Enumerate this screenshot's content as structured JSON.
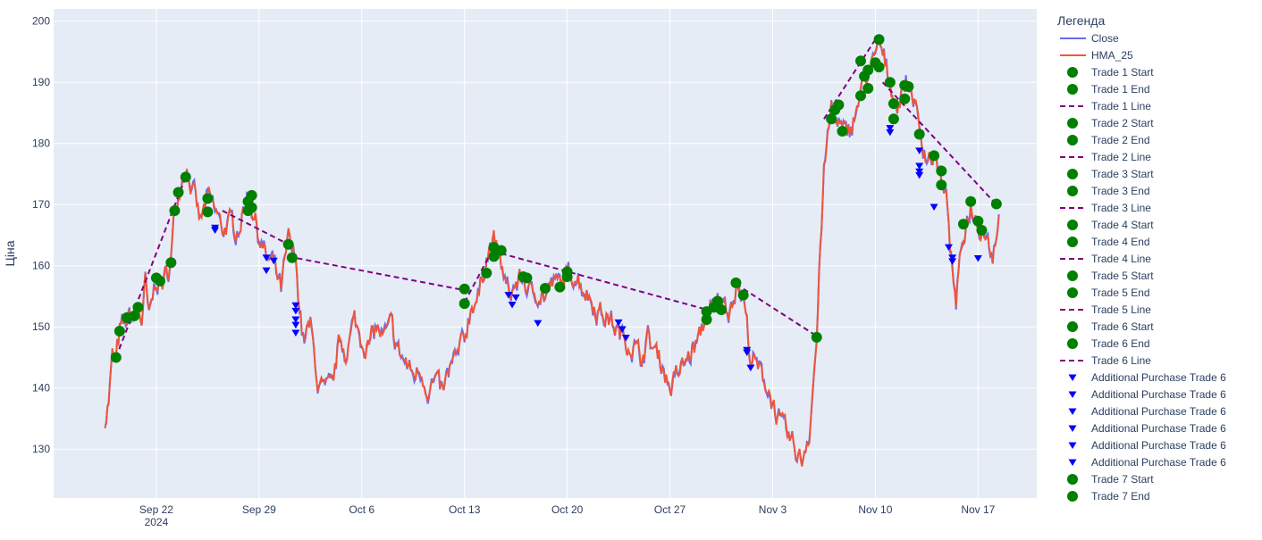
{
  "chart_data": {
    "type": "line",
    "ylabel": "Ціна",
    "ylim": [
      122,
      202
    ],
    "xlim": [
      "2024-09-15",
      "2024-11-21"
    ],
    "yticks": [
      130,
      140,
      150,
      160,
      170,
      180,
      190,
      200
    ],
    "xticks": [
      {
        "date": "2024-09-22",
        "label": "Sep 22",
        "sublabel": "2024"
      },
      {
        "date": "2024-09-29",
        "label": "Sep 29",
        "sublabel": ""
      },
      {
        "date": "2024-10-06",
        "label": "Oct 6",
        "sublabel": ""
      },
      {
        "date": "2024-10-13",
        "label": "Oct 13",
        "sublabel": ""
      },
      {
        "date": "2024-10-20",
        "label": "Oct 20",
        "sublabel": ""
      },
      {
        "date": "2024-10-27",
        "label": "Oct 27",
        "sublabel": ""
      },
      {
        "date": "2024-11-03",
        "label": "Nov 3",
        "sublabel": ""
      },
      {
        "date": "2024-11-10",
        "label": "Nov 10",
        "sublabel": ""
      },
      {
        "date": "2024-11-17",
        "label": "Nov 17",
        "sublabel": ""
      }
    ],
    "grid": true,
    "background": "#e5ecf6",
    "colors": {
      "close": "#636efa",
      "hma": "#ef553b",
      "trade_marker": "#008000",
      "trade_line": "#800080",
      "purchase": "#0000ff"
    },
    "legend": {
      "title": "Легенда",
      "placement": "right",
      "items": [
        {
          "label": "Close",
          "kind": "line",
          "color": "#636efa"
        },
        {
          "label": "HMA_25",
          "kind": "line",
          "color": "#ef553b"
        },
        {
          "label": "Trade 1 Start",
          "kind": "circle"
        },
        {
          "label": "Trade 1 End",
          "kind": "circle"
        },
        {
          "label": "Trade 1 Line",
          "kind": "dash"
        },
        {
          "label": "Trade 2 Start",
          "kind": "circle"
        },
        {
          "label": "Trade 2 End",
          "kind": "circle"
        },
        {
          "label": "Trade 2 Line",
          "kind": "dash"
        },
        {
          "label": "Trade 3 Start",
          "kind": "circle"
        },
        {
          "label": "Trade 3 End",
          "kind": "circle"
        },
        {
          "label": "Trade 3 Line",
          "kind": "dash"
        },
        {
          "label": "Trade 4 Start",
          "kind": "circle"
        },
        {
          "label": "Trade 4 End",
          "kind": "circle"
        },
        {
          "label": "Trade 4 Line",
          "kind": "dash"
        },
        {
          "label": "Trade 5 Start",
          "kind": "circle"
        },
        {
          "label": "Trade 5 End",
          "kind": "circle"
        },
        {
          "label": "Trade 5 Line",
          "kind": "dash"
        },
        {
          "label": "Trade 6 Start",
          "kind": "circle"
        },
        {
          "label": "Trade 6 End",
          "kind": "circle"
        },
        {
          "label": "Trade 6 Line",
          "kind": "dash"
        },
        {
          "label": "Additional Purchase Trade 6",
          "kind": "triangle"
        },
        {
          "label": "Additional Purchase Trade 6",
          "kind": "triangle"
        },
        {
          "label": "Additional Purchase Trade 6",
          "kind": "triangle"
        },
        {
          "label": "Additional Purchase Trade 6",
          "kind": "triangle"
        },
        {
          "label": "Additional Purchase Trade 6",
          "kind": "triangle"
        },
        {
          "label": "Additional Purchase Trade 6",
          "kind": "triangle"
        },
        {
          "label": "Trade 7 Start",
          "kind": "circle"
        },
        {
          "label": "Trade 7 End",
          "kind": "circle"
        }
      ]
    },
    "price_anchors": [
      [
        "2024-09-18 12:00",
        135
      ],
      [
        "2024-09-18 18:00",
        138
      ],
      [
        "2024-09-19 00:00",
        145
      ],
      [
        "2024-09-19 06:00",
        144
      ],
      [
        "2024-09-19 12:00",
        149
      ],
      [
        "2024-09-20 00:00",
        151
      ],
      [
        "2024-09-20 12:00",
        152
      ],
      [
        "2024-09-20 18:00",
        153
      ],
      [
        "2024-09-21 00:00",
        151
      ],
      [
        "2024-09-21 06:00",
        157
      ],
      [
        "2024-09-21 12:00",
        151
      ],
      [
        "2024-09-22 00:00",
        158
      ],
      [
        "2024-09-22 12:00",
        157
      ],
      [
        "2024-09-23 00:00",
        161
      ],
      [
        "2024-09-23 06:00",
        169
      ],
      [
        "2024-09-23 12:00",
        172
      ],
      [
        "2024-09-24 00:00",
        177
      ],
      [
        "2024-09-24 12:00",
        172
      ],
      [
        "2024-09-25 00:00",
        167
      ],
      [
        "2024-09-25 12:00",
        171
      ],
      [
        "2024-09-26 00:00",
        169
      ],
      [
        "2024-09-26 12:00",
        166
      ],
      [
        "2024-09-27 00:00",
        167
      ],
      [
        "2024-09-27 12:00",
        166
      ],
      [
        "2024-09-28 00:00",
        169
      ],
      [
        "2024-09-28 06:00",
        172
      ],
      [
        "2024-09-28 12:00",
        170
      ],
      [
        "2024-09-29 00:00",
        165
      ],
      [
        "2024-09-29 12:00",
        161
      ],
      [
        "2024-09-30 00:00",
        160
      ],
      [
        "2024-09-30 12:00",
        156
      ],
      [
        "2024-10-01 00:00",
        164
      ],
      [
        "2024-10-01 12:00",
        160
      ],
      [
        "2024-10-02 00:00",
        148
      ],
      [
        "2024-10-02 12:00",
        150
      ],
      [
        "2024-10-03 00:00",
        141
      ],
      [
        "2024-10-03 12:00",
        139
      ],
      [
        "2024-10-04 00:00",
        140
      ],
      [
        "2024-10-04 12:00",
        148
      ],
      [
        "2024-10-05 00:00",
        146
      ],
      [
        "2024-10-05 12:00",
        151
      ],
      [
        "2024-10-06 00:00",
        148
      ],
      [
        "2024-10-06 12:00",
        147
      ],
      [
        "2024-10-07 00:00",
        150
      ],
      [
        "2024-10-07 12:00",
        148
      ],
      [
        "2024-10-08 00:00",
        150
      ],
      [
        "2024-10-08 12:00",
        146
      ],
      [
        "2024-10-09 00:00",
        144
      ],
      [
        "2024-10-09 12:00",
        142
      ],
      [
        "2024-10-10 00:00",
        143
      ],
      [
        "2024-10-10 12:00",
        140
      ],
      [
        "2024-10-11 00:00",
        141
      ],
      [
        "2024-10-11 12:00",
        139
      ],
      [
        "2024-10-12 00:00",
        143
      ],
      [
        "2024-10-12 12:00",
        145
      ],
      [
        "2024-10-13 00:00",
        148
      ],
      [
        "2024-10-13 12:00",
        154
      ],
      [
        "2024-10-14 00:00",
        155
      ],
      [
        "2024-10-14 12:00",
        162
      ],
      [
        "2024-10-15 00:00",
        164
      ],
      [
        "2024-10-15 06:00",
        162
      ],
      [
        "2024-10-15 12:00",
        160
      ],
      [
        "2024-10-16 00:00",
        155
      ],
      [
        "2024-10-16 12:00",
        157
      ],
      [
        "2024-10-17 00:00",
        158
      ],
      [
        "2024-10-17 12:00",
        155
      ],
      [
        "2024-10-18 00:00",
        156
      ],
      [
        "2024-10-18 12:00",
        155
      ],
      [
        "2024-10-19 00:00",
        157
      ],
      [
        "2024-10-19 12:00",
        157
      ],
      [
        "2024-10-20 00:00",
        158
      ],
      [
        "2024-10-20 12:00",
        159
      ],
      [
        "2024-10-21 00:00",
        157
      ],
      [
        "2024-10-21 12:00",
        155
      ],
      [
        "2024-10-22 00:00",
        153
      ],
      [
        "2024-10-22 12:00",
        152
      ],
      [
        "2024-10-23 00:00",
        151
      ],
      [
        "2024-10-23 12:00",
        149
      ],
      [
        "2024-10-24 00:00",
        148
      ],
      [
        "2024-10-24 12:00",
        147
      ],
      [
        "2024-10-25 00:00",
        145
      ],
      [
        "2024-10-25 12:00",
        148
      ],
      [
        "2024-10-26 00:00",
        146
      ],
      [
        "2024-10-26 12:00",
        144
      ],
      [
        "2024-10-27 00:00",
        140
      ],
      [
        "2024-10-27 12:00",
        142
      ],
      [
        "2024-10-28 00:00",
        144
      ],
      [
        "2024-10-28 12:00",
        146
      ],
      [
        "2024-10-29 00:00",
        148
      ],
      [
        "2024-10-29 12:00",
        152
      ],
      [
        "2024-10-30 00:00",
        153
      ],
      [
        "2024-10-30 12:00",
        154
      ],
      [
        "2024-10-31 00:00",
        153
      ],
      [
        "2024-10-31 12:00",
        157
      ],
      [
        "2024-11-01 00:00",
        155
      ],
      [
        "2024-11-01 12:00",
        145
      ],
      [
        "2024-11-02 00:00",
        143
      ],
      [
        "2024-11-02 12:00",
        141
      ],
      [
        "2024-11-03 00:00",
        138
      ],
      [
        "2024-11-03 12:00",
        134
      ],
      [
        "2024-11-04 00:00",
        132
      ],
      [
        "2024-11-04 12:00",
        130
      ],
      [
        "2024-11-05 00:00",
        128
      ],
      [
        "2024-11-05 06:00",
        131
      ],
      [
        "2024-11-05 12:00",
        133
      ],
      [
        "2024-11-06 00:00",
        148
      ],
      [
        "2024-11-06 06:00",
        163
      ],
      [
        "2024-11-06 12:00",
        175
      ],
      [
        "2024-11-07 00:00",
        186
      ],
      [
        "2024-11-07 12:00",
        183
      ],
      [
        "2024-11-08 00:00",
        181
      ],
      [
        "2024-11-08 12:00",
        184
      ],
      [
        "2024-11-09 00:00",
        188
      ],
      [
        "2024-11-09 12:00",
        192
      ],
      [
        "2024-11-10 00:00",
        193
      ],
      [
        "2024-11-10 06:00",
        197
      ],
      [
        "2024-11-10 12:00",
        194
      ],
      [
        "2024-11-11 00:00",
        190
      ],
      [
        "2024-11-11 12:00",
        186
      ],
      [
        "2024-11-12 00:00",
        190
      ],
      [
        "2024-11-12 12:00",
        189
      ],
      [
        "2024-11-13 00:00",
        182
      ],
      [
        "2024-11-13 12:00",
        178
      ],
      [
        "2024-11-14 00:00",
        178
      ],
      [
        "2024-11-14 12:00",
        174
      ],
      [
        "2024-11-15 00:00",
        168
      ],
      [
        "2024-11-15 06:00",
        158
      ],
      [
        "2024-11-15 12:00",
        154
      ],
      [
        "2024-11-16 00:00",
        165
      ],
      [
        "2024-11-16 12:00",
        170
      ],
      [
        "2024-11-17 00:00",
        167
      ],
      [
        "2024-11-17 12:00",
        166
      ],
      [
        "2024-11-18 00:00",
        162
      ],
      [
        "2024-11-18 12:00",
        170
      ]
    ],
    "trades": [
      {
        "start": [
          "2024-09-19 06:00",
          145
        ],
        "end": [
          "2024-09-24 00:00",
          174.5
        ]
      },
      {
        "start": [
          "2024-09-26 12:00",
          169
        ],
        "end": [
          "2024-10-01 00:00",
          163.5
        ]
      },
      {
        "start": [
          "2024-10-01 00:00",
          161.5
        ],
        "end": [
          "2024-10-13 00:00",
          156
        ]
      },
      {
        "start": [
          "2024-10-13 00:00",
          154
        ],
        "end": [
          "2024-10-15 00:00",
          163
        ]
      },
      {
        "start": [
          "2024-10-15 12:00",
          162
        ],
        "end": [
          "2024-10-30 00:00",
          152.5
        ]
      },
      {
        "start": [
          "2024-10-31 12:00",
          157
        ],
        "end": [
          "2024-11-06 00:00",
          148.5
        ]
      },
      {
        "start": [
          "2024-11-06 12:00",
          184
        ],
        "end": [
          "2024-11-10 00:00",
          197
        ]
      },
      {
        "start": [
          "2024-11-10 12:00",
          190
        ],
        "end": [
          "2024-11-18 06:00",
          170
        ]
      }
    ],
    "trade_markers": [
      [
        "2024-09-19 06:00",
        145
      ],
      [
        "2024-09-19 12:00",
        149.3
      ],
      [
        "2024-09-20 00:00",
        151.5
      ],
      [
        "2024-09-20 12:00",
        151.8
      ],
      [
        "2024-09-20 18:00",
        153.2
      ],
      [
        "2024-09-22 00:00",
        158
      ],
      [
        "2024-09-22 06:00",
        157.5
      ],
      [
        "2024-09-23 00:00",
        160.5
      ],
      [
        "2024-09-23 06:00",
        169
      ],
      [
        "2024-09-23 12:00",
        172
      ],
      [
        "2024-09-24 00:00",
        174.5
      ],
      [
        "2024-09-25 12:00",
        171
      ],
      [
        "2024-09-25 12:00",
        168.8
      ],
      [
        "2024-09-28 06:00",
        170.5
      ],
      [
        "2024-09-28 06:00",
        169
      ],
      [
        "2024-09-28 12:00",
        169.5
      ],
      [
        "2024-09-28 12:00",
        171.5
      ],
      [
        "2024-10-01 00:00",
        163.5
      ],
      [
        "2024-10-01 06:00",
        161.3
      ],
      [
        "2024-10-13 00:00",
        156.2
      ],
      [
        "2024-10-13 00:00",
        153.8
      ],
      [
        "2024-10-14 12:00",
        158.8
      ],
      [
        "2024-10-15 00:00",
        161.5
      ],
      [
        "2024-10-15 00:00",
        163
      ],
      [
        "2024-10-15 12:00",
        162.5
      ],
      [
        "2024-10-17 00:00",
        158.2
      ],
      [
        "2024-10-17 06:00",
        158
      ],
      [
        "2024-10-18 12:00",
        156.3
      ],
      [
        "2024-10-19 12:00",
        156.5
      ],
      [
        "2024-10-20 00:00",
        158.2
      ],
      [
        "2024-10-20 00:00",
        159
      ],
      [
        "2024-10-29 12:00",
        152.5
      ],
      [
        "2024-10-29 12:00",
        151.2
      ],
      [
        "2024-10-30 00:00",
        153.2
      ],
      [
        "2024-10-30 06:00",
        154.2
      ],
      [
        "2024-10-30 12:00",
        152.8
      ],
      [
        "2024-10-31 12:00",
        157.2
      ],
      [
        "2024-11-01 00:00",
        155.2
      ],
      [
        "2024-11-06 00:00",
        148.3
      ],
      [
        "2024-11-07 00:00",
        184
      ],
      [
        "2024-11-07 06:00",
        185.5
      ],
      [
        "2024-11-07 12:00",
        186.3
      ],
      [
        "2024-11-07 18:00",
        182
      ],
      [
        "2024-11-09 00:00",
        193.5
      ],
      [
        "2024-11-09 00:00",
        187.8
      ],
      [
        "2024-11-09 06:00",
        191
      ],
      [
        "2024-11-09 12:00",
        192
      ],
      [
        "2024-11-09 12:00",
        189
      ],
      [
        "2024-11-10 00:00",
        193.2
      ],
      [
        "2024-11-10 06:00",
        197
      ],
      [
        "2024-11-10 06:00",
        192.5
      ],
      [
        "2024-11-11 00:00",
        190
      ],
      [
        "2024-11-11 06:00",
        184
      ],
      [
        "2024-11-11 06:00",
        186.5
      ],
      [
        "2024-11-12 00:00",
        187.3
      ],
      [
        "2024-11-12 00:00",
        189.5
      ],
      [
        "2024-11-12 06:00",
        189.3
      ],
      [
        "2024-11-13 00:00",
        181.5
      ],
      [
        "2024-11-14 00:00",
        178
      ],
      [
        "2024-11-14 12:00",
        175.5
      ],
      [
        "2024-11-14 12:00",
        173.2
      ],
      [
        "2024-11-16 00:00",
        166.8
      ],
      [
        "2024-11-16 12:00",
        170.5
      ],
      [
        "2024-11-17 00:00",
        167.3
      ],
      [
        "2024-11-17 06:00",
        165.8
      ],
      [
        "2024-11-18 06:00",
        170.1
      ]
    ],
    "purchases": [
      [
        "2024-09-26 00:00",
        166.2
      ],
      [
        "2024-09-26 00:00",
        165.8
      ],
      [
        "2024-09-29 12:00",
        161.3
      ],
      [
        "2024-09-29 12:00",
        159.2
      ],
      [
        "2024-09-30 00:00",
        160.8
      ],
      [
        "2024-10-01 12:00",
        153.5
      ],
      [
        "2024-10-01 12:00",
        152.6
      ],
      [
        "2024-10-01 12:00",
        151.2
      ],
      [
        "2024-10-01 12:00",
        150.3
      ],
      [
        "2024-10-01 12:00",
        149
      ],
      [
        "2024-10-16 00:00",
        155.2
      ],
      [
        "2024-10-16 06:00",
        153.6
      ],
      [
        "2024-10-16 12:00",
        154.8
      ],
      [
        "2024-10-18 00:00",
        150.6
      ],
      [
        "2024-10-23 12:00",
        150.7
      ],
      [
        "2024-10-23 18:00",
        149.6
      ],
      [
        "2024-10-24 00:00",
        148.2
      ],
      [
        "2024-11-01 06:00",
        146.2
      ],
      [
        "2024-11-01 06:00",
        145.8
      ],
      [
        "2024-11-01 12:00",
        143.3
      ],
      [
        "2024-11-11 00:00",
        182.5
      ],
      [
        "2024-11-11 00:00",
        181.8
      ],
      [
        "2024-11-13 00:00",
        178.8
      ],
      [
        "2024-11-13 00:00",
        176.3
      ],
      [
        "2024-11-13 00:00",
        175.4
      ],
      [
        "2024-11-13 00:00",
        174.8
      ],
      [
        "2024-11-14 00:00",
        169.6
      ],
      [
        "2024-11-15 00:00",
        163
      ],
      [
        "2024-11-15 06:00",
        161.3
      ],
      [
        "2024-11-15 06:00",
        160.7
      ],
      [
        "2024-11-17 00:00",
        161.2
      ]
    ]
  }
}
